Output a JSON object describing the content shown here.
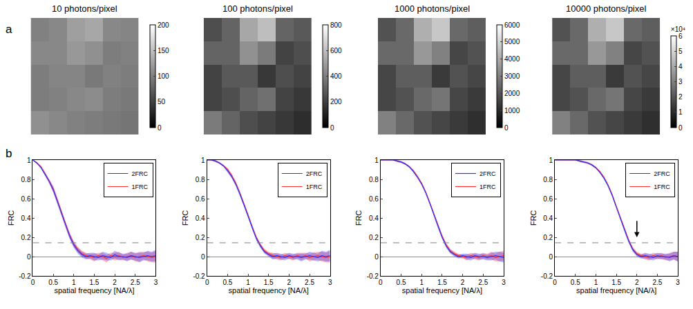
{
  "chart_data": [
    {
      "type": "heatmap",
      "panel_label": "a",
      "title": "10 photons/pixel",
      "tick_labels": false,
      "cells": [
        [
          101,
          107,
          125,
          131,
          107,
          104
        ],
        [
          107,
          107,
          119,
          113,
          98,
          101
        ],
        [
          98,
          104,
          104,
          95,
          101,
          98
        ],
        [
          98,
          101,
          107,
          110,
          98,
          95
        ],
        [
          113,
          107,
          101,
          98,
          95,
          92
        ]
      ],
      "colorbar_range": [
        0,
        200
      ],
      "colorbar_ticks": [
        0,
        50,
        100,
        150,
        200
      ]
    },
    {
      "type": "heatmap",
      "title": "100 photons/pixel",
      "tick_labels": false,
      "cells": [
        [
          245,
          315,
          525,
          595,
          315,
          280
        ],
        [
          315,
          315,
          455,
          385,
          210,
          245
        ],
        [
          210,
          280,
          280,
          175,
          245,
          210
        ],
        [
          210,
          245,
          315,
          350,
          210,
          175
        ],
        [
          385,
          315,
          245,
          210,
          175,
          140
        ]
      ],
      "colorbar_range": [
        0,
        800
      ],
      "colorbar_ticks": [
        0,
        200,
        400,
        600,
        800
      ]
    },
    {
      "type": "heatmap",
      "title": "1000 photons/pixel",
      "tick_labels": false,
      "cells": [
        [
          1925,
          2475,
          4125,
          4675,
          2475,
          2200
        ],
        [
          2475,
          2475,
          3575,
          3025,
          1650,
          1925
        ],
        [
          1650,
          2200,
          2200,
          1375,
          1925,
          1650
        ],
        [
          1650,
          1925,
          2475,
          2750,
          1650,
          1375
        ],
        [
          3025,
          2475,
          1925,
          1650,
          1375,
          1100
        ]
      ],
      "colorbar_range": [
        0,
        6000
      ],
      "colorbar_ticks": [
        0,
        1000,
        2000,
        3000,
        4000,
        5000,
        6000
      ]
    },
    {
      "type": "heatmap",
      "title": "10000 photons/pixel",
      "tick_labels": false,
      "cells": [
        [
          19250,
          24750,
          41250,
          46750,
          24750,
          22000
        ],
        [
          24750,
          24750,
          35750,
          30250,
          16500,
          19250
        ],
        [
          16500,
          22000,
          22000,
          13750,
          19250,
          16500
        ],
        [
          16500,
          19250,
          24750,
          27500,
          16500,
          13750
        ],
        [
          30250,
          24750,
          19250,
          16500,
          13750,
          11000
        ]
      ],
      "colorbar_range": [
        0,
        60000
      ],
      "colorbar_ticks": [
        0,
        {
          "value": 10000,
          "label": "1"
        },
        {
          "value": 20000,
          "label": "2"
        },
        {
          "value": 30000,
          "label": "3"
        },
        {
          "value": 40000,
          "label": "4"
        },
        {
          "value": 50000,
          "label": "5"
        },
        {
          "value": 60000,
          "label": "6"
        }
      ],
      "colorbar_title": "×10⁴"
    },
    {
      "type": "line",
      "panel_label": "b",
      "x_label": "spatial frequency [NA/λ]",
      "y_label": "FRC",
      "legend": "upper right",
      "x": [
        0,
        0.1,
        0.2,
        0.3,
        0.4,
        0.5,
        0.6,
        0.7,
        0.8,
        0.9,
        1,
        1.1,
        1.2,
        1.3,
        1.4,
        1.5,
        1.6,
        1.7,
        1.8,
        1.9,
        2,
        2.1,
        2.2,
        2.3,
        2.4,
        2.5,
        2.6,
        2.7,
        2.8,
        2.9,
        3
      ],
      "xlim": [
        0,
        3
      ],
      "xticks": [
        0,
        0.5,
        1,
        1.5,
        2,
        2.5,
        3
      ],
      "ylim": [
        -0.2,
        1
      ],
      "yticks": [
        -0.2,
        0,
        0.2,
        0.4,
        0.6,
        0.8,
        1
      ],
      "threshold": 0.143,
      "series": [
        {
          "name": "1FRC",
          "color": "#ff3030",
          "values": [
            1,
            0.97,
            0.93,
            0.86,
            0.78,
            0.7,
            0.58,
            0.45,
            0.33,
            0.22,
            0.13,
            0.07,
            0.03,
            0.01,
            0,
            -0.01,
            0.01,
            0,
            -0.02,
            0.01,
            0,
            0.01,
            -0.01,
            0,
            0.01,
            -0.01,
            0,
            0.01,
            0,
            -0.01,
            0
          ],
          "error": [
            0,
            0.01,
            0.01,
            0.02,
            0.02,
            0.03,
            0.03,
            0.03,
            0.03,
            0.03,
            0.03,
            0.03,
            0.03,
            0.03,
            0.03,
            0.04,
            0.03,
            0.04,
            0.04,
            0.03,
            0.04,
            0.04,
            0.03,
            0.04,
            0.04,
            0.04,
            0.05,
            0.04,
            0.05,
            0.05,
            0.06
          ]
        },
        {
          "name": "2FRC",
          "color": "#3030ff",
          "values": [
            1,
            0.97,
            0.92,
            0.85,
            0.78,
            0.69,
            0.57,
            0.44,
            0.32,
            0.21,
            0.12,
            0.06,
            0.02,
            0,
            0.01,
            0,
            -0.01,
            0.01,
            0,
            -0.01,
            0.02,
            0,
            0,
            -0.01,
            0.01,
            0,
            -0.01,
            0,
            0.01,
            0,
            0.01
          ],
          "error": [
            0,
            0.01,
            0.01,
            0.02,
            0.02,
            0.03,
            0.03,
            0.03,
            0.03,
            0.03,
            0.03,
            0.03,
            0.03,
            0.03,
            0.03,
            0.04,
            0.03,
            0.04,
            0.04,
            0.03,
            0.04,
            0.04,
            0.03,
            0.04,
            0.04,
            0.04,
            0.05,
            0.04,
            0.05,
            0.05,
            0.06
          ]
        }
      ]
    },
    {
      "type": "line",
      "x_label": "spatial frequency [NA/λ]",
      "y_label": "FRC",
      "legend": "upper right",
      "x": [
        0,
        0.1,
        0.2,
        0.3,
        0.4,
        0.5,
        0.6,
        0.7,
        0.8,
        0.9,
        1,
        1.1,
        1.2,
        1.3,
        1.4,
        1.5,
        1.6,
        1.7,
        1.8,
        1.9,
        2,
        2.1,
        2.2,
        2.3,
        2.4,
        2.5,
        2.6,
        2.7,
        2.8,
        2.9,
        3
      ],
      "xlim": [
        0,
        3
      ],
      "xticks": [
        0,
        0.5,
        1,
        1.5,
        2,
        2.5,
        3
      ],
      "ylim": [
        -0.2,
        1
      ],
      "yticks": [
        -0.2,
        0,
        0.2,
        0.4,
        0.6,
        0.8,
        1
      ],
      "threshold": 0.143,
      "series": [
        {
          "name": "1FRC",
          "color": "#ff3030",
          "values": [
            1,
            1,
            0.99,
            0.97,
            0.94,
            0.9,
            0.84,
            0.76,
            0.66,
            0.55,
            0.43,
            0.31,
            0.2,
            0.12,
            0.06,
            0.03,
            0.01,
            0,
            -0.01,
            0.01,
            0,
            -0.01,
            0.01,
            0,
            0.01,
            -0.01,
            0,
            0.01,
            0,
            -0.01,
            0
          ],
          "error": [
            0,
            0,
            0.01,
            0.01,
            0.01,
            0.02,
            0.02,
            0.02,
            0.02,
            0.02,
            0.02,
            0.02,
            0.02,
            0.02,
            0.02,
            0.02,
            0.03,
            0.03,
            0.03,
            0.03,
            0.03,
            0.03,
            0.03,
            0.04,
            0.03,
            0.04,
            0.04,
            0.04,
            0.05,
            0.05,
            0.06
          ]
        },
        {
          "name": "2FRC",
          "color": "#3030ff",
          "values": [
            1,
            1,
            0.99,
            0.97,
            0.94,
            0.89,
            0.83,
            0.75,
            0.65,
            0.54,
            0.42,
            0.3,
            0.19,
            0.11,
            0.05,
            0.02,
            0,
            0.01,
            0,
            -0.01,
            0.01,
            0,
            0,
            -0.01,
            0,
            0.01,
            0,
            -0.01,
            0.01,
            0,
            0.01
          ],
          "error": [
            0,
            0,
            0.01,
            0.01,
            0.01,
            0.02,
            0.02,
            0.02,
            0.02,
            0.02,
            0.02,
            0.02,
            0.02,
            0.02,
            0.02,
            0.02,
            0.03,
            0.03,
            0.03,
            0.03,
            0.03,
            0.03,
            0.03,
            0.04,
            0.03,
            0.04,
            0.04,
            0.04,
            0.05,
            0.05,
            0.06
          ]
        }
      ]
    },
    {
      "type": "line",
      "x_label": "spatial frequency [NA/λ]",
      "y_label": "FRC",
      "legend": "upper right",
      "x": [
        0,
        0.1,
        0.2,
        0.3,
        0.4,
        0.5,
        0.6,
        0.7,
        0.8,
        0.9,
        1,
        1.1,
        1.2,
        1.3,
        1.4,
        1.5,
        1.6,
        1.7,
        1.8,
        1.9,
        2,
        2.1,
        2.2,
        2.3,
        2.4,
        2.5,
        2.6,
        2.7,
        2.8,
        2.9,
        3
      ],
      "xlim": [
        0,
        3
      ],
      "xticks": [
        0,
        0.5,
        1,
        1.5,
        2,
        2.5,
        3
      ],
      "ylim": [
        -0.2,
        1
      ],
      "yticks": [
        -0.2,
        0,
        0.2,
        0.4,
        0.6,
        0.8,
        1
      ],
      "threshold": 0.143,
      "series": [
        {
          "name": "1FRC",
          "color": "#ff3030",
          "values": [
            1,
            1,
            1,
            1,
            0.99,
            0.98,
            0.96,
            0.93,
            0.89,
            0.83,
            0.76,
            0.67,
            0.56,
            0.44,
            0.32,
            0.21,
            0.12,
            0.06,
            0.03,
            0.01,
            0,
            -0.01,
            0.01,
            0,
            -0.01,
            0.01,
            0,
            0.01,
            -0.01,
            0,
            0.01
          ],
          "error": [
            0,
            0,
            0,
            0,
            0.01,
            0.01,
            0.01,
            0.01,
            0.01,
            0.01,
            0.01,
            0.01,
            0.01,
            0.02,
            0.02,
            0.02,
            0.02,
            0.02,
            0.02,
            0.02,
            0.02,
            0.03,
            0.03,
            0.03,
            0.03,
            0.03,
            0.03,
            0.04,
            0.04,
            0.05,
            0.05
          ]
        },
        {
          "name": "2FRC",
          "color": "#3030ff",
          "values": [
            1,
            1,
            1,
            1,
            0.99,
            0.98,
            0.96,
            0.93,
            0.88,
            0.82,
            0.75,
            0.66,
            0.55,
            0.43,
            0.31,
            0.2,
            0.11,
            0.05,
            0.02,
            0,
            0.01,
            0,
            -0.01,
            0.01,
            0,
            0,
            -0.01,
            0,
            0.01,
            0,
            -0.01
          ],
          "error": [
            0,
            0,
            0,
            0,
            0.01,
            0.01,
            0.01,
            0.01,
            0.01,
            0.01,
            0.01,
            0.01,
            0.01,
            0.02,
            0.02,
            0.02,
            0.02,
            0.02,
            0.02,
            0.02,
            0.02,
            0.03,
            0.03,
            0.03,
            0.03,
            0.03,
            0.03,
            0.04,
            0.04,
            0.05,
            0.05
          ]
        }
      ]
    },
    {
      "type": "line",
      "x_label": "spatial frequency [NA/λ]",
      "y_label": "FRC",
      "legend": "upper right",
      "x": [
        0,
        0.1,
        0.2,
        0.3,
        0.4,
        0.5,
        0.6,
        0.7,
        0.8,
        0.9,
        1,
        1.1,
        1.2,
        1.3,
        1.4,
        1.5,
        1.6,
        1.7,
        1.8,
        1.9,
        2,
        2.1,
        2.2,
        2.3,
        2.4,
        2.5,
        2.6,
        2.7,
        2.8,
        2.9,
        3
      ],
      "xlim": [
        0,
        3
      ],
      "xticks": [
        0,
        0.5,
        1,
        1.5,
        2,
        2.5,
        3
      ],
      "ylim": [
        -0.2,
        1
      ],
      "yticks": [
        -0.2,
        0,
        0.2,
        0.4,
        0.6,
        0.8,
        1
      ],
      "threshold": 0.143,
      "arrow": {
        "x": 2,
        "y": 0.2,
        "y_start": 0.38
      },
      "series": [
        {
          "name": "1FRC",
          "color": "#ff3030",
          "values": [
            1,
            1,
            1,
            1,
            1,
            1,
            0.99,
            0.98,
            0.97,
            0.95,
            0.92,
            0.88,
            0.82,
            0.74,
            0.64,
            0.52,
            0.4,
            0.28,
            0.17,
            0.08,
            0.03,
            0.01,
            0,
            -0.01,
            0.01,
            0,
            0.01,
            -0.01,
            0,
            0.01,
            0
          ],
          "error": [
            0,
            0,
            0,
            0,
            0,
            0,
            0.01,
            0.01,
            0.01,
            0.01,
            0.01,
            0.01,
            0.01,
            0.01,
            0.01,
            0.01,
            0.02,
            0.02,
            0.02,
            0.02,
            0.02,
            0.02,
            0.03,
            0.03,
            0.03,
            0.03,
            0.03,
            0.03,
            0.04,
            0.04,
            0.05
          ]
        },
        {
          "name": "2FRC",
          "color": "#3030ff",
          "values": [
            1,
            1,
            1,
            1,
            1,
            1,
            0.99,
            0.98,
            0.97,
            0.95,
            0.92,
            0.87,
            0.81,
            0.73,
            0.63,
            0.51,
            0.39,
            0.27,
            0.16,
            0.07,
            0.02,
            0,
            0.01,
            0,
            -0.01,
            0.01,
            0,
            0,
            -0.01,
            0.01,
            0
          ],
          "error": [
            0,
            0,
            0,
            0,
            0,
            0,
            0.01,
            0.01,
            0.01,
            0.01,
            0.01,
            0.01,
            0.01,
            0.01,
            0.01,
            0.01,
            0.02,
            0.02,
            0.02,
            0.02,
            0.02,
            0.02,
            0.03,
            0.03,
            0.03,
            0.03,
            0.03,
            0.03,
            0.04,
            0.04,
            0.05
          ]
        }
      ]
    }
  ]
}
